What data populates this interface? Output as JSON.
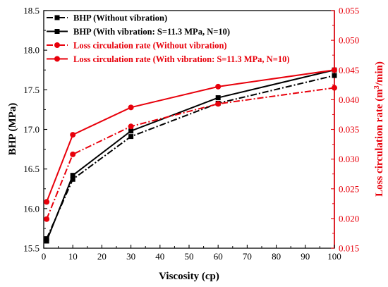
{
  "chart_data": {
    "type": "line",
    "xlabel": "Viscosity (cp)",
    "ylabel_left": "BHP (MPa)",
    "ylabel_right_main": "Loss circulation rate (m",
    "ylabel_right_sup": "3",
    "ylabel_right_end": "/min)",
    "xlim": [
      0,
      100
    ],
    "ylim_left": [
      15.5,
      18.5
    ],
    "ylim_right": [
      0.015,
      0.055
    ],
    "x_ticks": [
      0,
      10,
      20,
      30,
      40,
      50,
      60,
      70,
      80,
      90,
      100
    ],
    "y_ticks_left": [
      15.5,
      16.0,
      16.5,
      17.0,
      17.5,
      18.0,
      18.5
    ],
    "y_ticks_right": [
      0.015,
      0.02,
      0.025,
      0.03,
      0.035,
      0.04,
      0.045,
      0.05,
      0.055
    ],
    "left_axis_color": "#000000",
    "right_axis_color": "#e8000b",
    "legend_position": "top-left",
    "series": [
      {
        "name": "BHP (Without vibration)",
        "axis": "left",
        "color": "#000000",
        "line_style": "dashdot",
        "marker": "square",
        "x": [
          1,
          10,
          30,
          60,
          100
        ],
        "y": [
          15.62,
          16.37,
          16.91,
          17.33,
          17.68
        ]
      },
      {
        "name": "BHP (With vibration: S=11.3 MPa, N=10)",
        "axis": "left",
        "color": "#000000",
        "line_style": "solid",
        "marker": "square",
        "x": [
          1,
          10,
          30,
          60,
          100
        ],
        "y": [
          15.59,
          16.42,
          16.98,
          17.4,
          17.75
        ]
      },
      {
        "name": "Loss circulation rate   (Without vibration)",
        "axis": "right",
        "color": "#e8000b",
        "line_style": "dashdot",
        "marker": "circle",
        "x": [
          1,
          10,
          30,
          60,
          100
        ],
        "y": [
          0.0199,
          0.0308,
          0.0355,
          0.0393,
          0.042
        ]
      },
      {
        "name": "Loss circulation rate  (With vibration: S=11.3 MPa, N=10)",
        "axis": "right",
        "color": "#e8000b",
        "line_style": "solid",
        "marker": "circle",
        "x": [
          1,
          10,
          30,
          60,
          100
        ],
        "y": [
          0.0228,
          0.0341,
          0.0387,
          0.0422,
          0.045
        ]
      }
    ]
  }
}
